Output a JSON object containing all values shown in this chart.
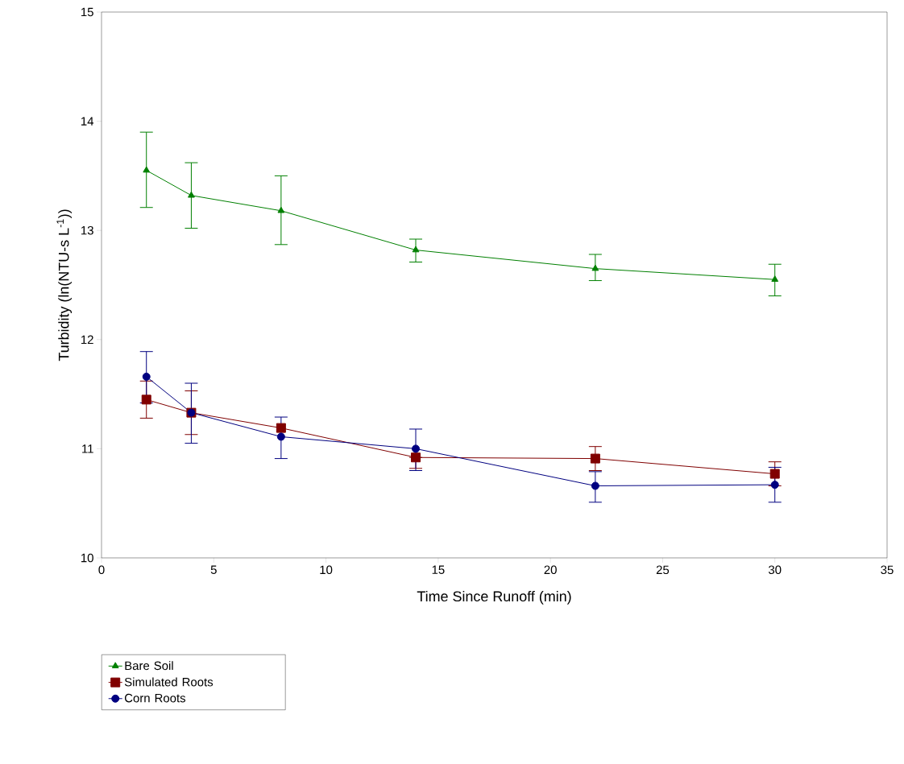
{
  "chart_data": {
    "type": "line",
    "xlabel": "Time Since Runoff (min)",
    "ylabel": "Turbidity (ln(NTU-s L$^{-1}$))",
    "x": [
      2,
      4,
      8,
      14,
      22,
      30
    ],
    "xlim": [
      0,
      35
    ],
    "xticks": [
      0,
      5,
      10,
      15,
      20,
      25,
      30,
      35
    ],
    "ylim": [
      10,
      15
    ],
    "yticks": [
      10,
      11,
      12,
      13,
      14,
      15
    ],
    "grid": false,
    "legend": "bottom left",
    "line_style": "solid",
    "series": [
      {
        "name": "Bare Soil",
        "color": "#008000",
        "marker": "triangle",
        "values": [
          13.55,
          13.32,
          13.18,
          12.82,
          12.65,
          12.55
        ],
        "errors": [
          [
            13.21,
            13.9
          ],
          [
            13.02,
            13.62
          ],
          [
            12.87,
            13.5
          ],
          [
            12.71,
            12.92
          ],
          [
            12.54,
            12.78
          ],
          [
            12.4,
            12.69
          ]
        ]
      },
      {
        "name": "Simulated Roots",
        "color": "#800000",
        "marker": "square",
        "values": [
          11.45,
          11.33,
          11.19,
          10.92,
          10.91,
          10.77
        ],
        "errors": [
          [
            11.28,
            11.62
          ],
          [
            11.13,
            11.53
          ],
          null,
          [
            10.82,
            10.92
          ],
          [
            10.8,
            11.02
          ],
          [
            10.66,
            10.88
          ]
        ]
      },
      {
        "name": "Corn Roots",
        "color": "#000080",
        "marker": "circle",
        "values": [
          11.66,
          11.33,
          11.11,
          11.0,
          10.66,
          10.67
        ],
        "errors": [
          [
            11.42,
            11.89
          ],
          [
            11.05,
            11.6
          ],
          [
            10.91,
            11.29
          ],
          [
            10.8,
            11.18
          ],
          [
            10.51,
            10.79
          ],
          [
            10.51,
            10.83
          ]
        ]
      }
    ]
  }
}
